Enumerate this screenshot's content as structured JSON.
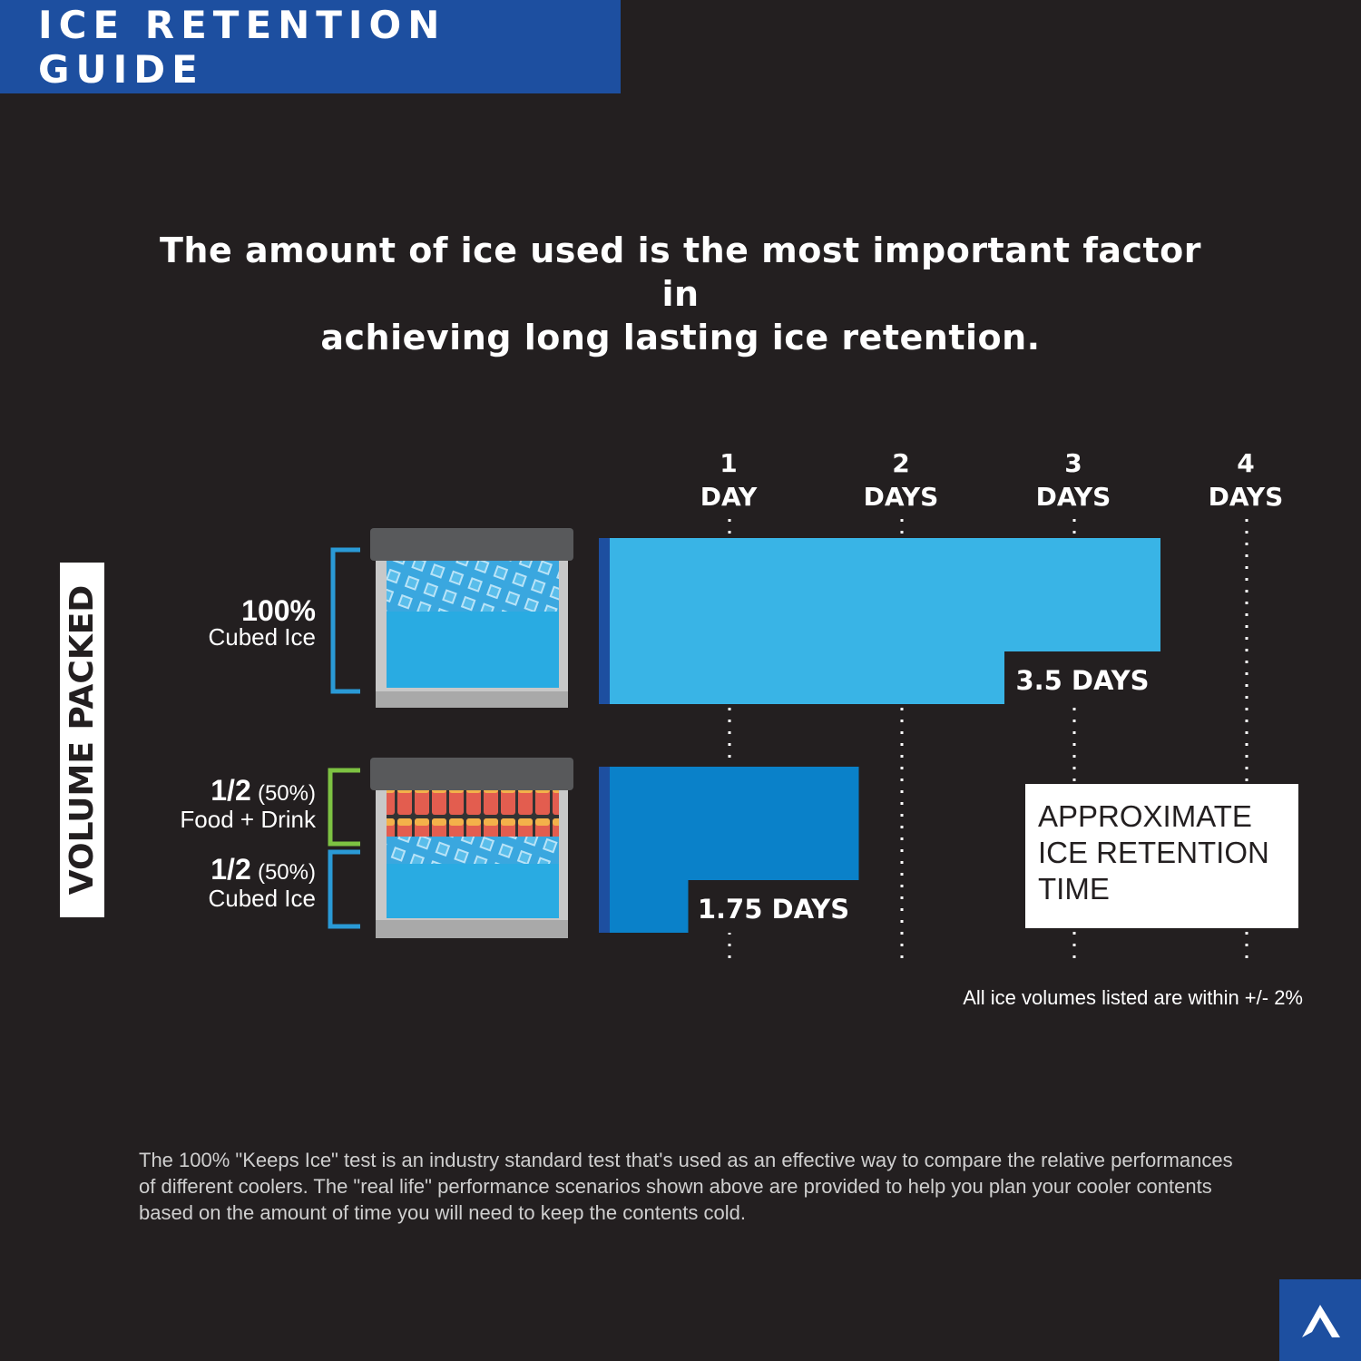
{
  "header": {
    "title": "ICE RETENTION GUIDE"
  },
  "headline": {
    "line1": "The amount of ice used is the most important factor in",
    "line2": "achieving long lasting ice retention."
  },
  "y_axis_label": "VOLUME PACKED",
  "rows": [
    {
      "pct_main": "100%",
      "desc_main": "Cubed Ice"
    },
    {
      "pct_top": "1/2",
      "pct_top_paren": "(50%)",
      "desc_top": "Food + Drink",
      "pct_bot": "1/2",
      "pct_bot_paren": "(50%)",
      "desc_bot": "Cubed Ice"
    }
  ],
  "axis_ticks": [
    {
      "num": "1",
      "unit": "DAY"
    },
    {
      "num": "2",
      "unit": "DAYS"
    },
    {
      "num": "3",
      "unit": "DAYS"
    },
    {
      "num": "4",
      "unit": "DAYS"
    }
  ],
  "legend": {
    "line1": "APPROXIMATE",
    "line2": "ICE RETENTION",
    "line3": "TIME"
  },
  "note": "All ice volumes listed are within +/- 2%",
  "footnote": "The 100% \"Keeps Ice\" test is an industry standard test that's used as an effective way to compare the relative performances of different coolers. The \"real life\" performance scenarios shown above are provided to help you plan your cooler contents based on the amount of time you will need to keep the contents cold.",
  "chart_data": {
    "type": "bar",
    "orientation": "horizontal",
    "categories": [
      "100% Cubed Ice",
      "1/2 Food + Drink, 1/2 Cubed Ice"
    ],
    "values": [
      3.5,
      1.75
    ],
    "value_labels": [
      "3.5 DAYS",
      "1.75 DAYS"
    ],
    "xlabel": "Approximate Ice Retention Time",
    "ylabel": "VOLUME PACKED",
    "xlim": [
      0,
      4
    ],
    "xticks": [
      1,
      2,
      3,
      4
    ],
    "colors": [
      "#39b4e6",
      "#0a81c9"
    ]
  },
  "colors": {
    "background": "#231f20",
    "brand_blue": "#1d4fa0",
    "bar_light": "#39b4e6",
    "bar_dark": "#0a81c9",
    "bracket_blue": "#2a9ad6",
    "bracket_green": "#7dc242"
  }
}
